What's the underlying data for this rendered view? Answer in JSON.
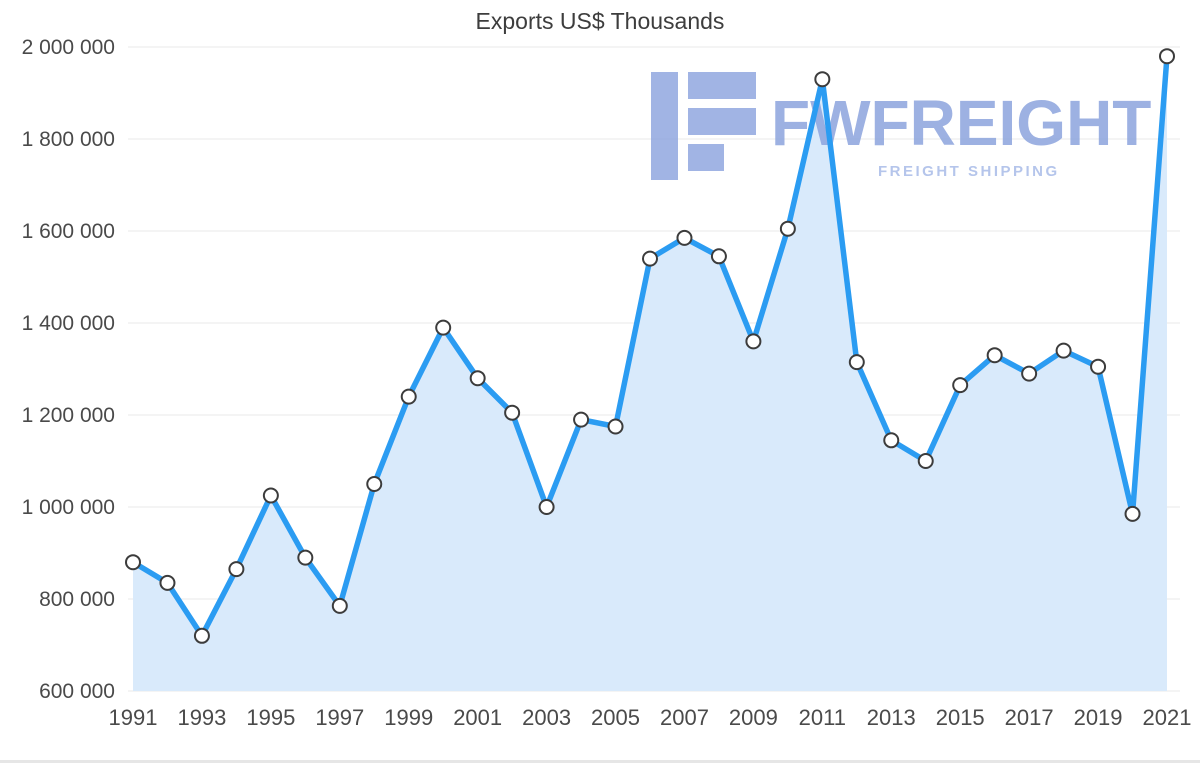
{
  "chart_data": {
    "type": "line",
    "area_fill": true,
    "title": "Exports US$ Thousands",
    "xlabel": "",
    "ylabel": "",
    "legend": "none",
    "grid": "horizontal",
    "x": [
      1991,
      1992,
      1993,
      1994,
      1995,
      1996,
      1997,
      1998,
      1999,
      2000,
      2001,
      2002,
      2003,
      2004,
      2005,
      2006,
      2007,
      2008,
      2009,
      2010,
      2011,
      2012,
      2013,
      2014,
      2015,
      2016,
      2017,
      2018,
      2019,
      2020,
      2021
    ],
    "values": [
      880000,
      835000,
      720000,
      865000,
      1025000,
      890000,
      785000,
      1050000,
      1240000,
      1390000,
      1280000,
      1205000,
      1000000,
      1190000,
      1175000,
      1540000,
      1585000,
      1545000,
      1360000,
      1605000,
      1930000,
      1315000,
      1145000,
      1100000,
      1265000,
      1330000,
      1290000,
      1340000,
      1305000,
      985000,
      1980000
    ],
    "ylim": [
      600000,
      2000000
    ],
    "ytick_step": 200000,
    "ytick_labels": [
      "2 000 000",
      "1 800 000",
      "1 600 000",
      "1 400 000",
      "1 200 000",
      "1 000 000",
      "800 000",
      "600 000"
    ],
    "xtick_labels": [
      "1991",
      "1993",
      "1995",
      "1997",
      "1999",
      "2001",
      "2003",
      "2005",
      "2007",
      "2009",
      "2011",
      "2013",
      "2015",
      "2017",
      "2019",
      "2021"
    ],
    "line_color": "#2b9cf2",
    "fill_color": "#d9eafb",
    "grid_color": "#e8e8e8",
    "axis_text_color": "#4a4a4a",
    "marker": {
      "fill": "#ffffff",
      "stroke": "#3c3c3c",
      "radius": 7
    }
  },
  "watermark": {
    "brand": "FWFREIGHT",
    "subtitle": "FREIGHT SHIPPING",
    "color": "#8ca4de",
    "subtitle_color": "#adbfe9"
  }
}
